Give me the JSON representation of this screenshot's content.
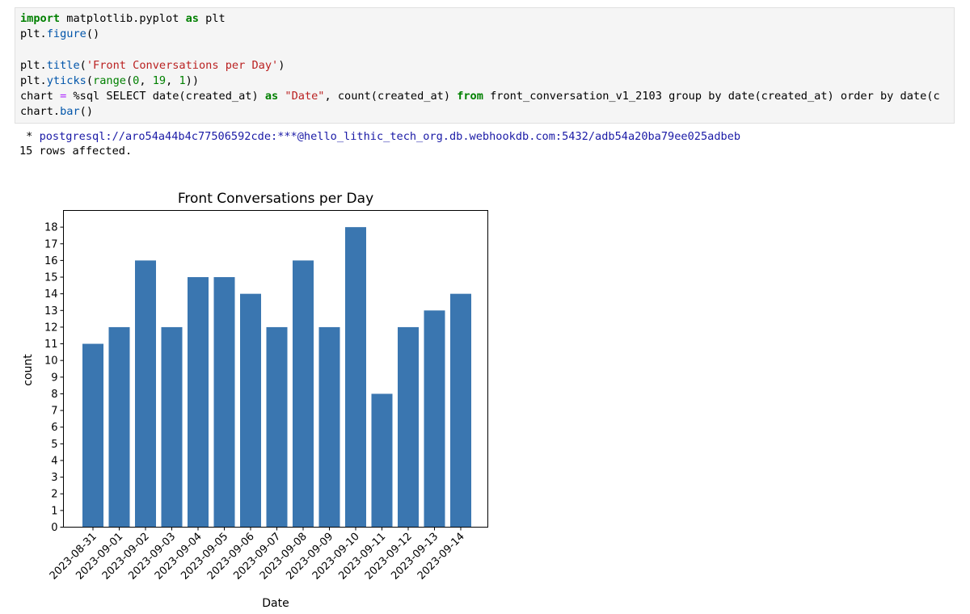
{
  "code": {
    "line1": {
      "kw": "import",
      "mid": " matplotlib.pyplot ",
      "kw2": "as",
      "tail": " plt"
    },
    "line2": {
      "obj": "plt.",
      "fn": "figure",
      "tail": "()"
    },
    "line3": {
      "obj": "plt.",
      "fn": "title",
      "open": "(",
      "str": "'Front Conversations per Day'",
      "close": ")"
    },
    "line4": {
      "obj": "plt.",
      "fn": "yticks",
      "open": "(",
      "fn2": "range",
      "open2": "(",
      "n1": "0",
      "sep1": ", ",
      "n2": "19",
      "sep2": ", ",
      "n3": "1",
      "close": "))"
    },
    "line5": {
      "head": "chart ",
      "eq": "=",
      "pct": " %sql SELECT date(created_at) ",
      "kw": "as",
      "sp": " ",
      "str": "\"Date\"",
      "mid": ", count(created_at) ",
      "kw2": "from",
      "tail": " front_conversation_v1_2103 group by date(created_at) order by date(c"
    },
    "line6": {
      "obj": "chart.",
      "fn": "bar",
      "tail": "()"
    }
  },
  "output": {
    "prefix": " * ",
    "connection": "postgresql://aro54a44b4c77506592cde:***@hello_lithic_tech_org.db.webhookdb.com:5432/adb54a20ba79ee025adbeb",
    "rows": "15 rows affected."
  },
  "chart_data": {
    "type": "bar",
    "title": "Front Conversations per Day",
    "xlabel": "Date",
    "ylabel": "count",
    "categories": [
      "2023-08-31",
      "2023-09-01",
      "2023-09-02",
      "2023-09-03",
      "2023-09-04",
      "2023-09-05",
      "2023-09-06",
      "2023-09-07",
      "2023-09-08",
      "2023-09-09",
      "2023-09-10",
      "2023-09-11",
      "2023-09-12",
      "2023-09-13",
      "2023-09-14"
    ],
    "values": [
      11,
      12,
      16,
      12,
      15,
      15,
      14,
      12,
      16,
      12,
      18,
      8,
      12,
      13,
      14
    ],
    "yticks": [
      0,
      1,
      2,
      3,
      4,
      5,
      6,
      7,
      8,
      9,
      10,
      11,
      12,
      13,
      14,
      15,
      16,
      17,
      18
    ],
    "ylim": [
      0,
      19
    ],
    "grid": false,
    "bar_color": "#3a76b0"
  }
}
